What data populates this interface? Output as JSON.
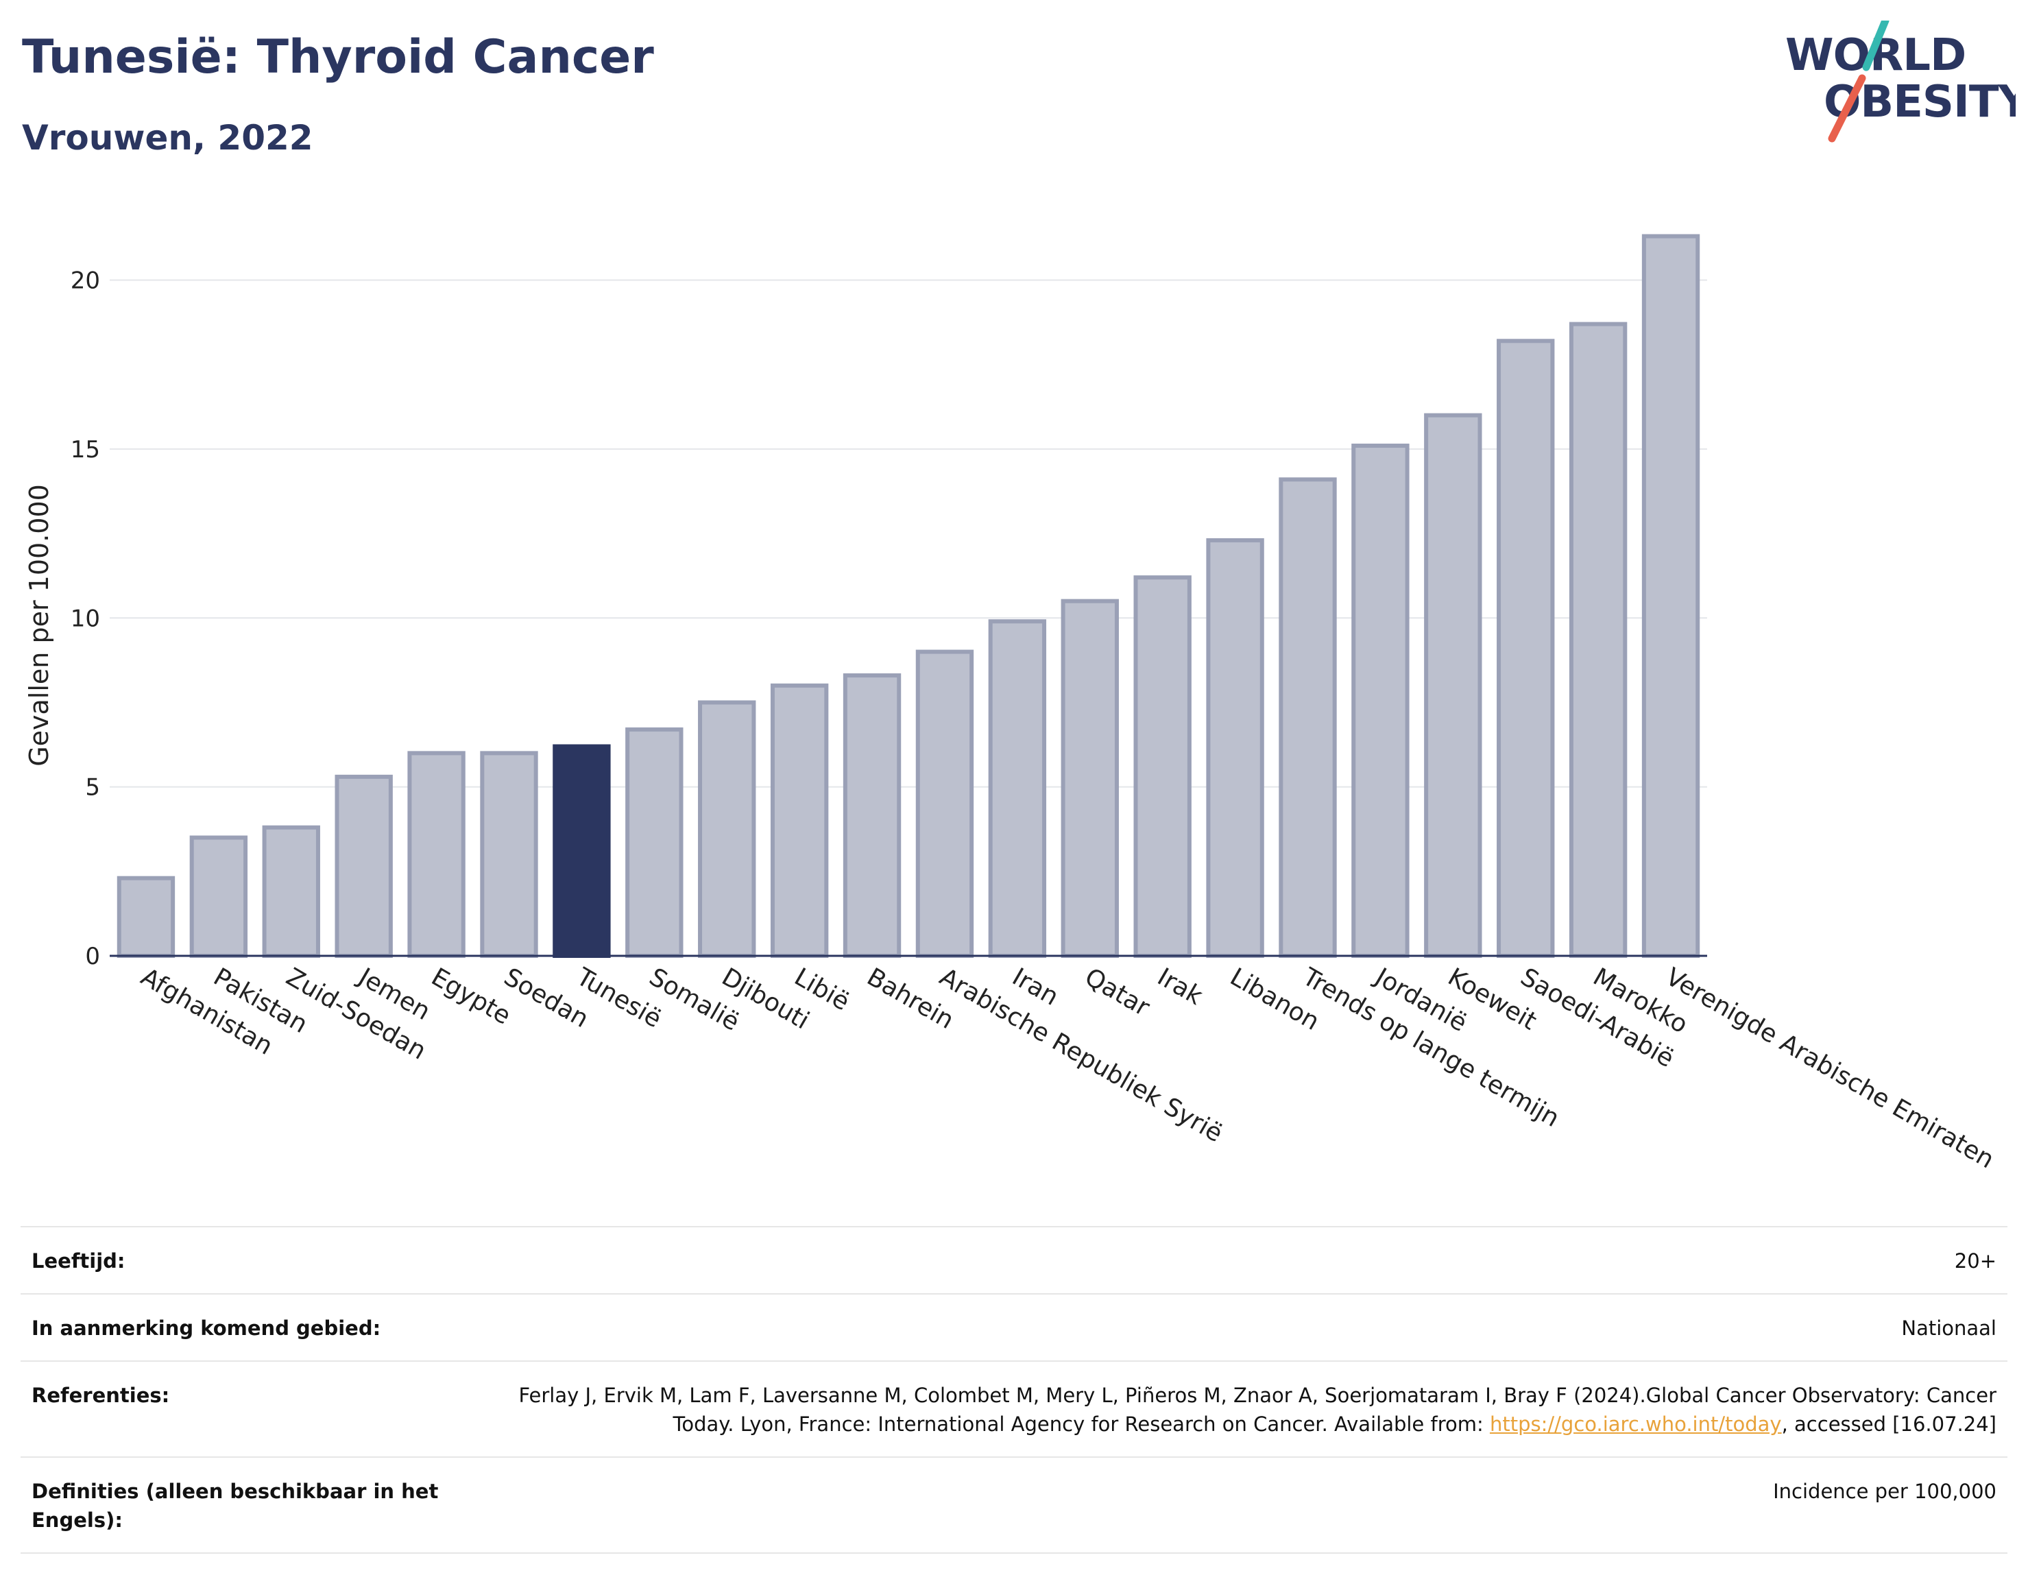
{
  "header": {
    "title": "Tunesië: Thyroid Cancer",
    "subtitle": "Vrouwen, 2022"
  },
  "logo": {
    "line1": "WORLD",
    "line2": "OBESITY",
    "colors": {
      "text": "#2b3660",
      "slash_top": "#35b8b0",
      "slash_bottom": "#e8604c"
    }
  },
  "chart_data": {
    "type": "bar",
    "ylabel": "Gevallen per 100.000",
    "xlabel": "",
    "ylim": [
      0,
      22
    ],
    "yticks": [
      0,
      5,
      10,
      15,
      20
    ],
    "grid": true,
    "highlight": "Tunesië",
    "colors": {
      "bar": "#bcc0ce",
      "bar_border": "#9aa0b6",
      "highlight": "#2b3660"
    },
    "categories": [
      "Afghanistan",
      "Pakistan",
      "Zuid-Soedan",
      "Jemen",
      "Egypte",
      "Soedan",
      "Tunesië",
      "Somalië",
      "Djibouti",
      "Libië",
      "Bahrein",
      "Arabische Republiek Syrië",
      "Iran",
      "Qatar",
      "Irak",
      "Libanon",
      "Trends op lange termijn",
      "Jordanië",
      "Koeweit",
      "Saoedi-Arabië",
      "Marokko",
      "Verenigde Arabische Emiraten"
    ],
    "values": [
      2.3,
      3.5,
      3.8,
      5.3,
      6.0,
      6.0,
      6.2,
      6.7,
      7.5,
      8.0,
      8.3,
      9.0,
      9.9,
      10.5,
      11.2,
      12.3,
      14.1,
      15.1,
      16.0,
      18.2,
      18.7,
      21.3
    ]
  },
  "meta": {
    "age_label": "Leeftijd:",
    "age_value": "20+",
    "area_label": "In aanmerking komend gebied:",
    "area_value": "Nationaal",
    "ref_label": "Referenties:",
    "ref_text_1": "Ferlay J, Ervik M, Lam F, Laversanne M, Colombet M, Mery L, Piñeros M, Znaor A, Soerjomataram I, Bray F (2024).Global Cancer Observatory: Cancer Today. Lyon, France: International Agency for Research on Cancer. Available from: ",
    "ref_link": "https://gco.iarc.who.int/today",
    "ref_text_2": ", accessed [16.07.24]",
    "def_label": "Definities (alleen beschikbaar in het Engels):",
    "def_value": "Incidence per 100,000"
  }
}
